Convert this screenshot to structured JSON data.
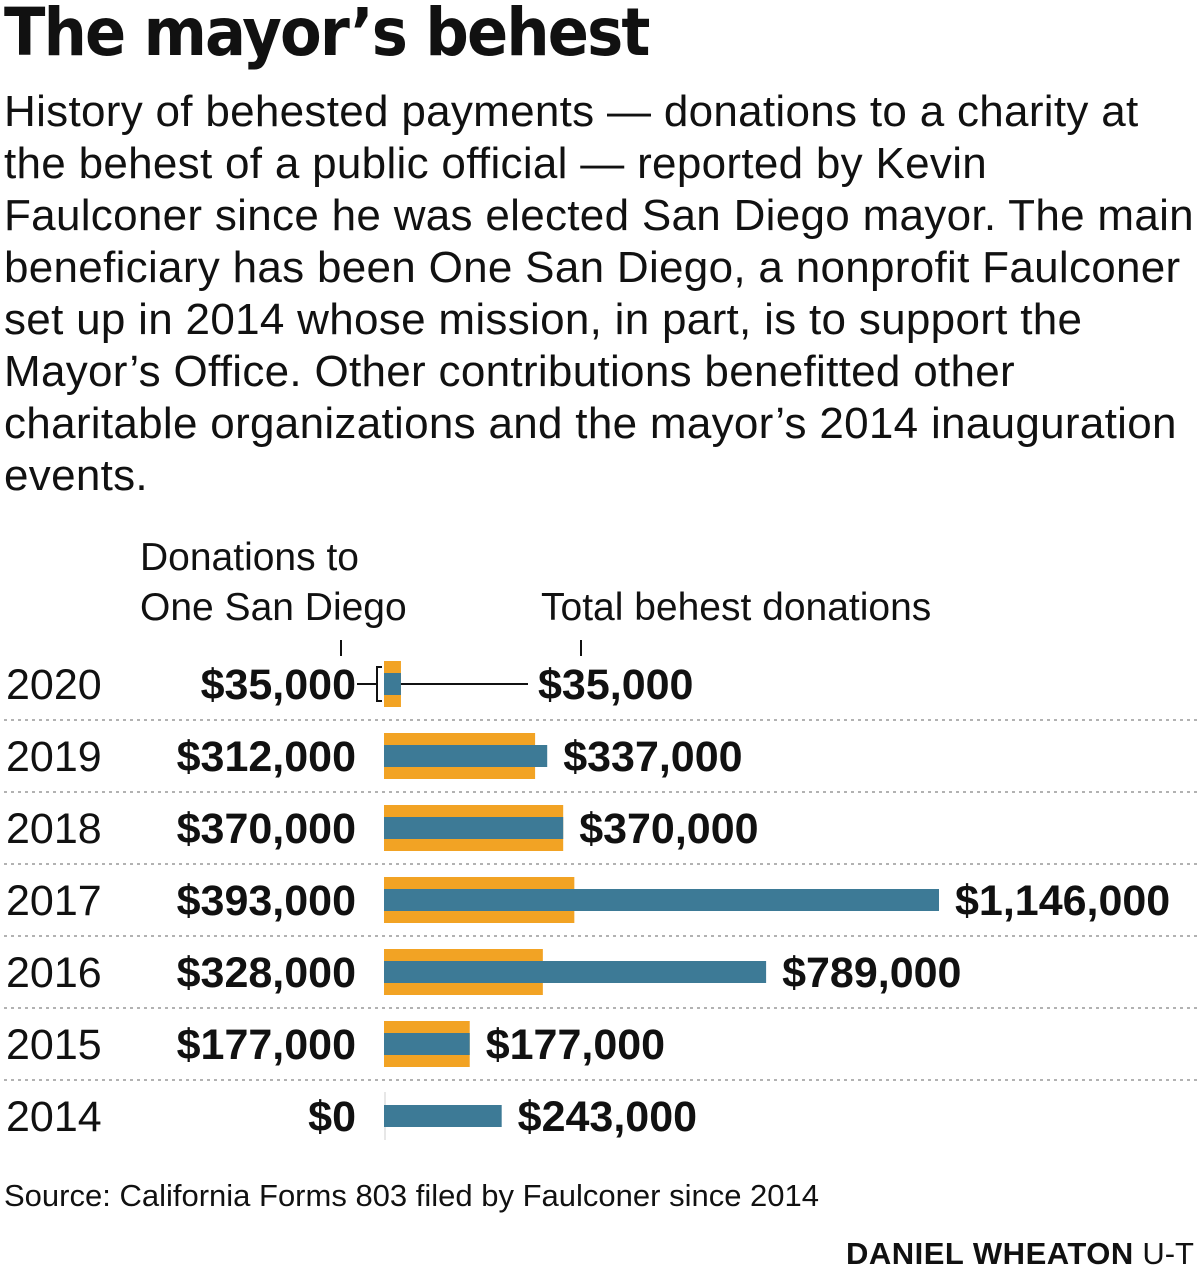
{
  "title": "The mayor’s behest",
  "subtitle": "History of behested payments — donations to a charity at the behest of a public official — reported by Kevin Faulconer since he was elected San Diego mayor. The main beneficiary has been One San Diego, a nonprofit Faulconer set up in 2014 whose mission, in part, is to support the Mayor’s Office. Other  contributions benefitted other charitable organizations and the mayor’s 2014 inauguration events.",
  "column_headers": {
    "one_san_diego_line1": "Donations to",
    "one_san_diego_line2": "One San Diego",
    "total": "Total behest donations"
  },
  "source": "Source: California Forms 803 filed by Faulconer since 2014",
  "credit": {
    "name": "DANIEL WHEATON",
    "org": "U-T"
  },
  "colors": {
    "one_san_diego": "#F2A324",
    "total": "#3D7A96",
    "text": "#111111",
    "divider": "#999999"
  },
  "chart_data": {
    "type": "bar",
    "orientation": "horizontal",
    "categories": [
      "2020",
      "2019",
      "2018",
      "2017",
      "2016",
      "2015",
      "2014"
    ],
    "series": [
      {
        "name": "Donations to One San Diego",
        "values": [
          35000,
          312000,
          370000,
          393000,
          328000,
          177000,
          0
        ],
        "labels": [
          "$35,000",
          "$312,000",
          "$370,000",
          "$393,000",
          "$328,000",
          "$177,000",
          "$0"
        ]
      },
      {
        "name": "Total behest donations",
        "values": [
          35000,
          337000,
          370000,
          1146000,
          789000,
          177000,
          243000
        ],
        "labels": [
          "$35,000",
          "$337,000",
          "$370,000",
          "$1,146,000",
          "$789,000",
          "$177,000",
          "$243,000"
        ]
      }
    ],
    "xlim": [
      0,
      1146000
    ],
    "grid": false
  }
}
